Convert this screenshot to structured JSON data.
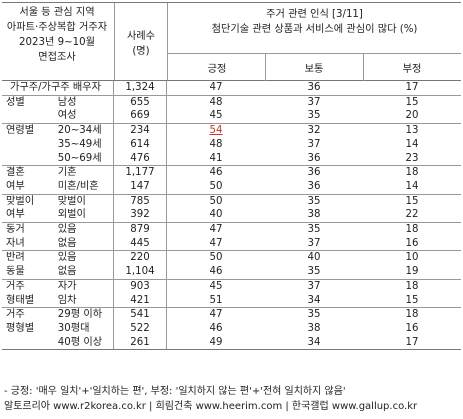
{
  "header": {
    "caption_lines": [
      "서울 등 관심 지역",
      "아파트·주상복합 거주자",
      "2023년 9~10월",
      "면접조사"
    ],
    "n_label_lines": [
      "사례수",
      "(명)"
    ],
    "title": "주거 관련 인식 [3/11]",
    "subtitle": "첨단기술 관련 상품과 서비스에 관심이 많다 (%)",
    "columns": [
      "긍정",
      "보통",
      "부정"
    ]
  },
  "total": {
    "label": "가구주/가구주 배우자",
    "n": "1,324",
    "pos": "47",
    "neu": "36",
    "neg": "17"
  },
  "groups": [
    {
      "label1": "성별",
      "label2": "",
      "rows": [
        {
          "label": "남성",
          "n": "655",
          "pos": "48",
          "neu": "37",
          "neg": "15"
        },
        {
          "label": "여성",
          "n": "669",
          "pos": "45",
          "neu": "35",
          "neg": "20"
        }
      ]
    },
    {
      "label1": "연령별",
      "label2": "",
      "rows": [
        {
          "label": "20~34세",
          "n": "234",
          "pos": "54",
          "neu": "32",
          "neg": "13",
          "highlight": true
        },
        {
          "label": "35~49세",
          "n": "614",
          "pos": "48",
          "neu": "37",
          "neg": "14"
        },
        {
          "label": "50~69세",
          "n": "476",
          "pos": "41",
          "neu": "36",
          "neg": "23"
        }
      ]
    },
    {
      "label1": "결혼",
      "label2": "여부",
      "rows": [
        {
          "label": "기혼",
          "n": "1,177",
          "pos": "46",
          "neu": "36",
          "neg": "18"
        },
        {
          "label": "미혼/비혼",
          "n": "147",
          "pos": "50",
          "neu": "36",
          "neg": "14"
        }
      ]
    },
    {
      "label1": "맞벌이",
      "label2": "여부",
      "rows": [
        {
          "label": "맞벌이",
          "n": "785",
          "pos": "50",
          "neu": "35",
          "neg": "15"
        },
        {
          "label": "외벌이",
          "n": "392",
          "pos": "40",
          "neu": "38",
          "neg": "22"
        }
      ]
    },
    {
      "label1": "동거",
      "label2": "자녀",
      "rows": [
        {
          "label": "있음",
          "n": "879",
          "pos": "47",
          "neu": "35",
          "neg": "18"
        },
        {
          "label": "없음",
          "n": "445",
          "pos": "47",
          "neu": "37",
          "neg": "16"
        }
      ]
    },
    {
      "label1": "반려",
      "label2": "동물",
      "rows": [
        {
          "label": "있음",
          "n": "220",
          "pos": "50",
          "neu": "40",
          "neg": "10"
        },
        {
          "label": "없음",
          "n": "1,104",
          "pos": "46",
          "neu": "35",
          "neg": "19"
        }
      ]
    },
    {
      "label1": "거주",
      "label2": "형태별",
      "rows": [
        {
          "label": "자가",
          "n": "903",
          "pos": "45",
          "neu": "37",
          "neg": "18"
        },
        {
          "label": "임차",
          "n": "421",
          "pos": "51",
          "neu": "34",
          "neg": "15"
        }
      ]
    },
    {
      "label1": "거주",
      "label2": "평형별",
      "rows": [
        {
          "label": "29평 이하",
          "n": "541",
          "pos": "47",
          "neu": "35",
          "neg": "18"
        },
        {
          "label": "30평대",
          "n": "522",
          "neu": "38",
          "pos": "46",
          "neg": "16"
        },
        {
          "label": "40평 이상",
          "n": "261",
          "pos": "49",
          "neu": "34",
          "neg": "17"
        }
      ]
    }
  ],
  "notes": [
    "- 긍정: '매우 일치'+'일치하는 편', 부정: '일치하지 않는 편'+'전혀 일치하지 않음'",
    "알토르리아 www.r2korea.co.kr | 희림건축 www.heerim.com | 한국갤럽 www.gallup.co.kr"
  ]
}
